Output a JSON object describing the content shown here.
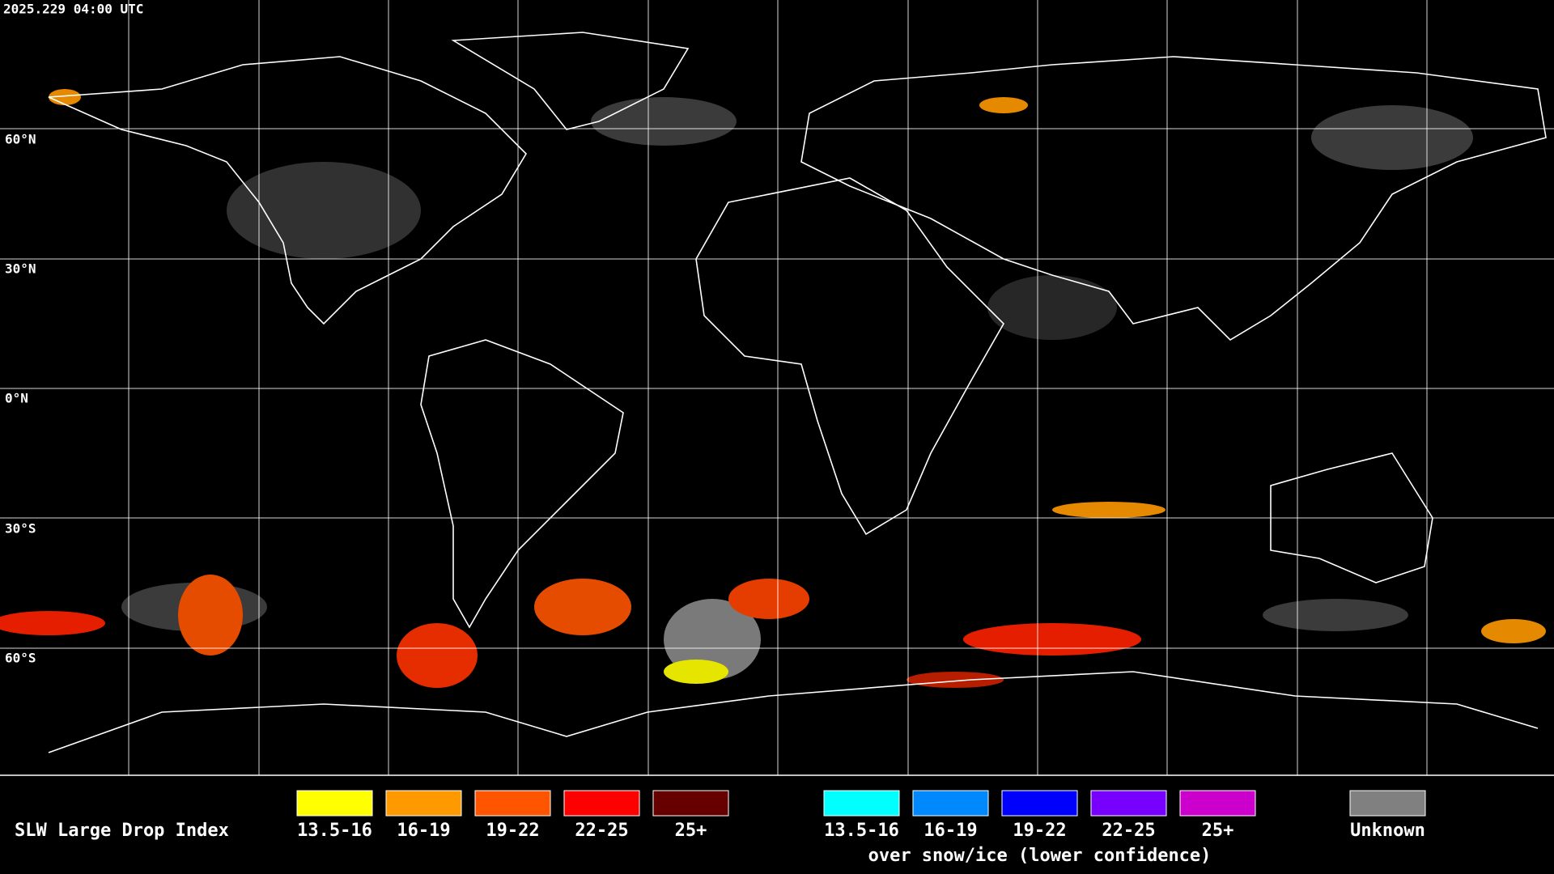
{
  "timestamp": "2025.229 04:00 UTC",
  "latitude_labels": [
    "60°N",
    "30°N",
    "0°N",
    "30°S",
    "60°S"
  ],
  "legend": {
    "title": "SLW Large Drop Index",
    "groups": [
      {
        "items": [
          {
            "label": "13.5-16",
            "color": "#ffff00"
          },
          {
            "label": "16-19",
            "color": "#ff9900"
          },
          {
            "label": "19-22",
            "color": "#ff5500"
          },
          {
            "label": "22-25",
            "color": "#ff0000"
          },
          {
            "label": "25+",
            "color": "#660000"
          }
        ]
      },
      {
        "items": [
          {
            "label": "13.5-16",
            "color": "#00ffff"
          },
          {
            "label": "16-19",
            "color": "#0088ff"
          },
          {
            "label": "19-22",
            "color": "#0000ff"
          },
          {
            "label": "22-25",
            "color": "#7700ff"
          },
          {
            "label": "25+",
            "color": "#cc00cc"
          }
        ],
        "caption": "over snow/ice (lower confidence)"
      }
    ],
    "unknown": {
      "label": "Unknown",
      "color": "#808080"
    }
  }
}
